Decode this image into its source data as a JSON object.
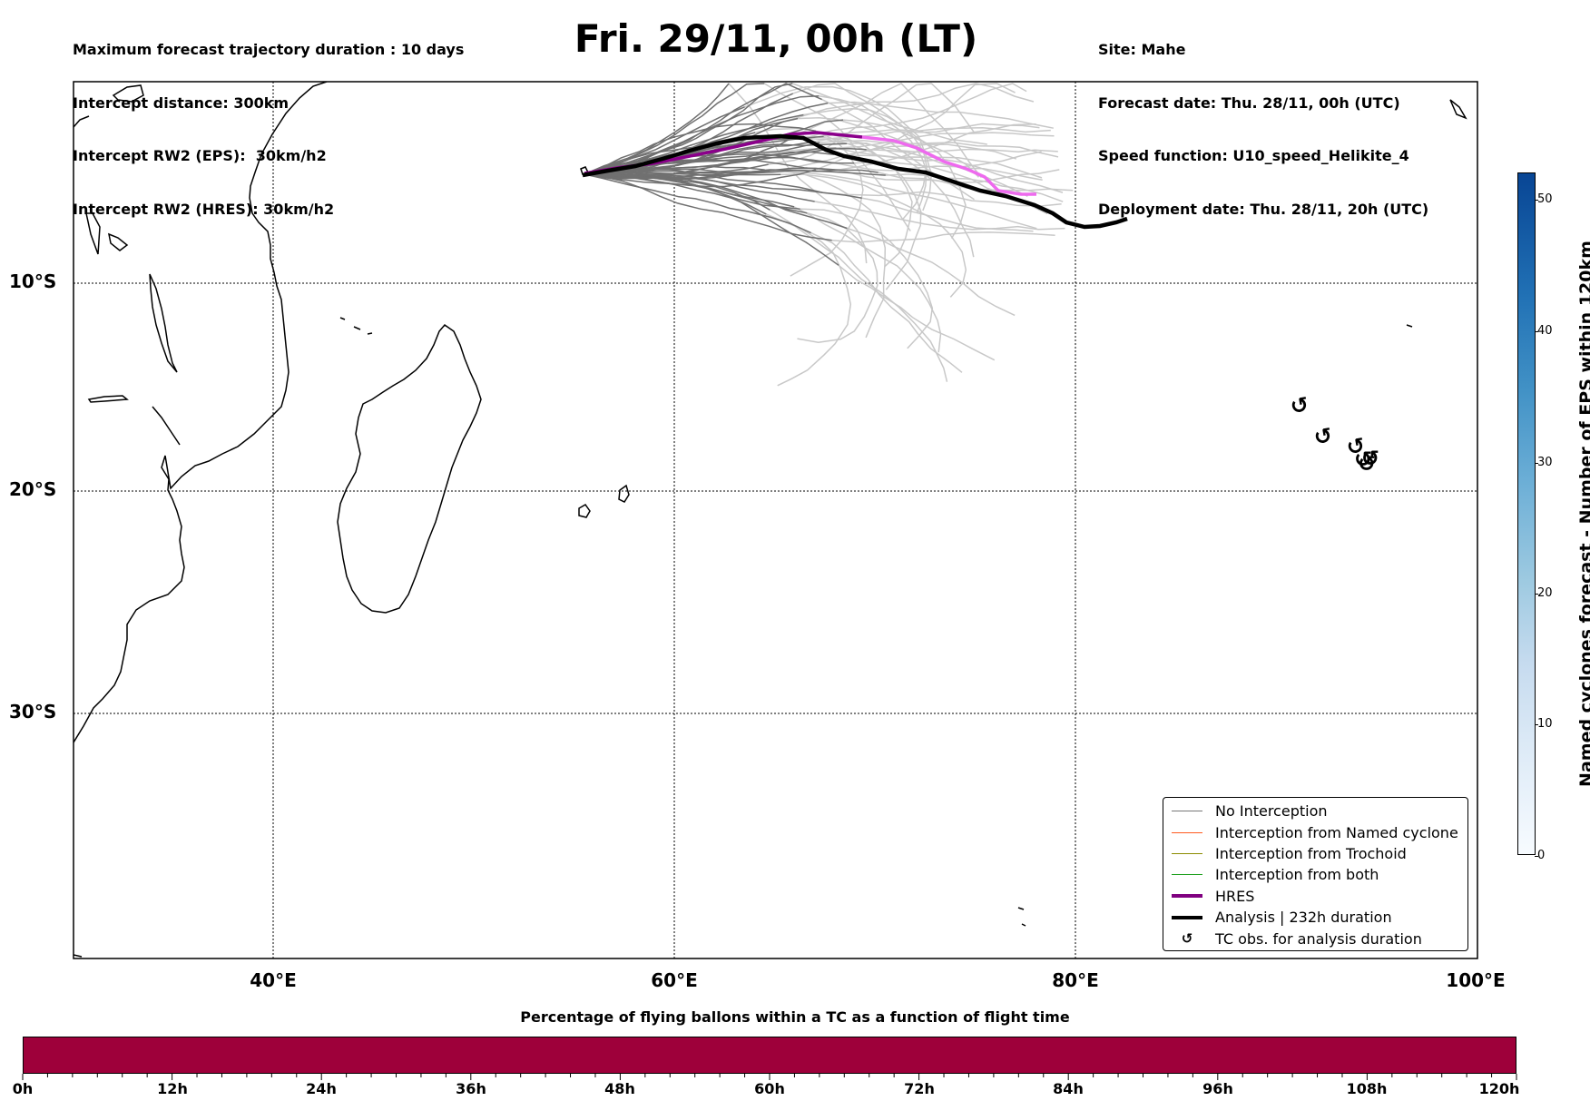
{
  "header": {
    "left": [
      "Maximum forecast trajectory duration : 10 days",
      "Intercept distance: 300km",
      "Intercept RW2 (EPS):  30km/h2",
      "Intercept RW2 (HRES): 30km/h2"
    ],
    "title": "Fri. 29/11, 00h (LT)",
    "right": [
      "Site: Mahe",
      "Forecast date: Thu. 28/11, 00h (UTC)",
      "Speed function: U10_speed_Helikite_4",
      "Deployment date: Thu. 28/11, 20h (UTC)"
    ]
  },
  "map": {
    "lat_labels": [
      "10°S",
      "20°S",
      "30°S"
    ],
    "lon_labels": [
      "40°E",
      "60°E",
      "80°E",
      "100°E"
    ],
    "colors": {
      "ensemble_early": "#707070",
      "ensemble_late": "#c8c8c8",
      "hres_early": "#8b008b",
      "hres_late": "#ee6aee",
      "analysis": "#000000"
    },
    "tc_obs_icon": "cyclone-icon"
  },
  "legend": [
    {
      "label": "No Interception",
      "color": "#777777",
      "style": "line"
    },
    {
      "label": "Interception from Named cyclone",
      "color": "#ff5a1f",
      "style": "line"
    },
    {
      "label": "Interception from Trochoid",
      "color": "#8b8b00",
      "style": "line"
    },
    {
      "label": "Interception from both",
      "color": "#1a9e1a",
      "style": "line"
    },
    {
      "label": "HRES",
      "color": "#800080",
      "style": "thick"
    },
    {
      "label": "Analysis | 232h duration",
      "color": "#000000",
      "style": "thick"
    },
    {
      "label": "TC obs. for analysis duration",
      "color": "#000000",
      "style": "icon"
    }
  ],
  "colorbar_right": {
    "label": "Named cyclones forecast - Number of EPS within 120km",
    "ticks": [
      "0",
      "10",
      "20",
      "30",
      "40",
      "50"
    ],
    "range": [
      0,
      52
    ],
    "colors": [
      "#f7fbff",
      "#084594"
    ]
  },
  "colorbar_bottom": {
    "title": "Percentage of flying ballons within a TC as a function of flight time",
    "ticks": [
      "0h",
      "12h",
      "24h",
      "36h",
      "48h",
      "60h",
      "72h",
      "84h",
      "96h",
      "108h",
      "120h"
    ],
    "color": "#9e003a"
  }
}
